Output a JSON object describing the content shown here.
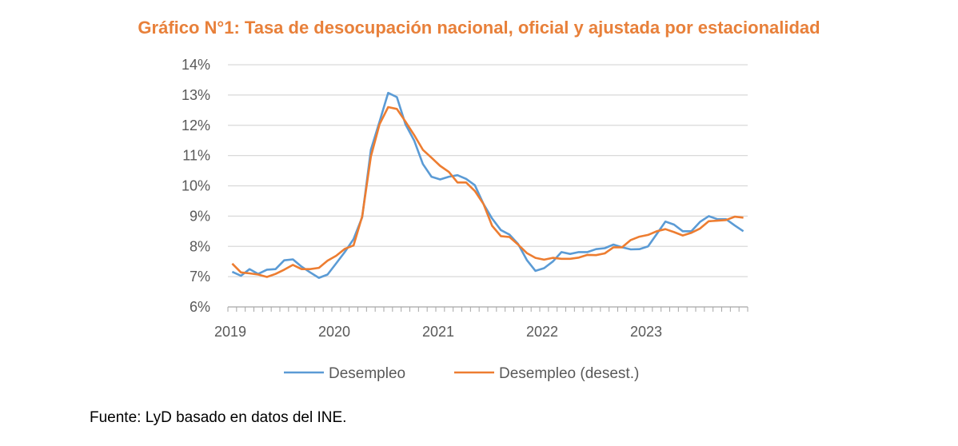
{
  "chart_data": {
    "type": "line",
    "title": "Gráfico N°1: Tasa de desocupación nacional, oficial y ajustada por estacionalidad",
    "xlabel": "",
    "ylabel": "",
    "x_start": "2019-01",
    "x_frequency": "monthly",
    "x_tick_labels": [
      "2019",
      "2020",
      "2021",
      "2022",
      "2023"
    ],
    "y_tick_labels": [
      "6%",
      "7%",
      "8%",
      "9%",
      "10%",
      "11%",
      "12%",
      "13%",
      "14%"
    ],
    "ylim": [
      6,
      14
    ],
    "grid": true,
    "legend_position": "bottom",
    "series": [
      {
        "name": "Desempleo",
        "color": "#5B9BD5",
        "values": [
          7.16,
          7.03,
          7.25,
          7.09,
          7.23,
          7.25,
          7.54,
          7.57,
          7.33,
          7.14,
          6.96,
          7.07,
          7.44,
          7.82,
          8.24,
          8.96,
          11.19,
          12.12,
          13.07,
          12.93,
          12.03,
          11.5,
          10.72,
          10.3,
          10.21,
          10.3,
          10.35,
          10.23,
          10.02,
          9.4,
          8.92,
          8.54,
          8.39,
          8.08,
          7.55,
          7.19,
          7.28,
          7.5,
          7.81,
          7.75,
          7.81,
          7.81,
          7.91,
          7.94,
          8.06,
          7.97,
          7.9,
          7.91,
          8.0,
          8.41,
          8.82,
          8.72,
          8.5,
          8.5,
          8.81,
          9.0,
          8.9,
          8.9,
          8.69,
          8.5
        ]
      },
      {
        "name": "Desempleo (desest.)",
        "color": "#ED7D31",
        "values": [
          7.43,
          7.14,
          7.11,
          7.07,
          6.99,
          7.09,
          7.23,
          7.39,
          7.25,
          7.25,
          7.29,
          7.53,
          7.69,
          7.92,
          8.03,
          8.99,
          10.97,
          12.03,
          12.6,
          12.54,
          12.12,
          11.68,
          11.19,
          10.93,
          10.66,
          10.46,
          10.11,
          10.11,
          9.83,
          9.4,
          8.68,
          8.34,
          8.31,
          8.06,
          7.78,
          7.62,
          7.56,
          7.62,
          7.59,
          7.59,
          7.63,
          7.72,
          7.71,
          7.77,
          7.97,
          7.97,
          8.21,
          8.32,
          8.38,
          8.5,
          8.57,
          8.47,
          8.36,
          8.45,
          8.59,
          8.83,
          8.85,
          8.87,
          8.98,
          8.95
        ]
      }
    ]
  },
  "source": "Fuente: LyD basado en datos del INE."
}
